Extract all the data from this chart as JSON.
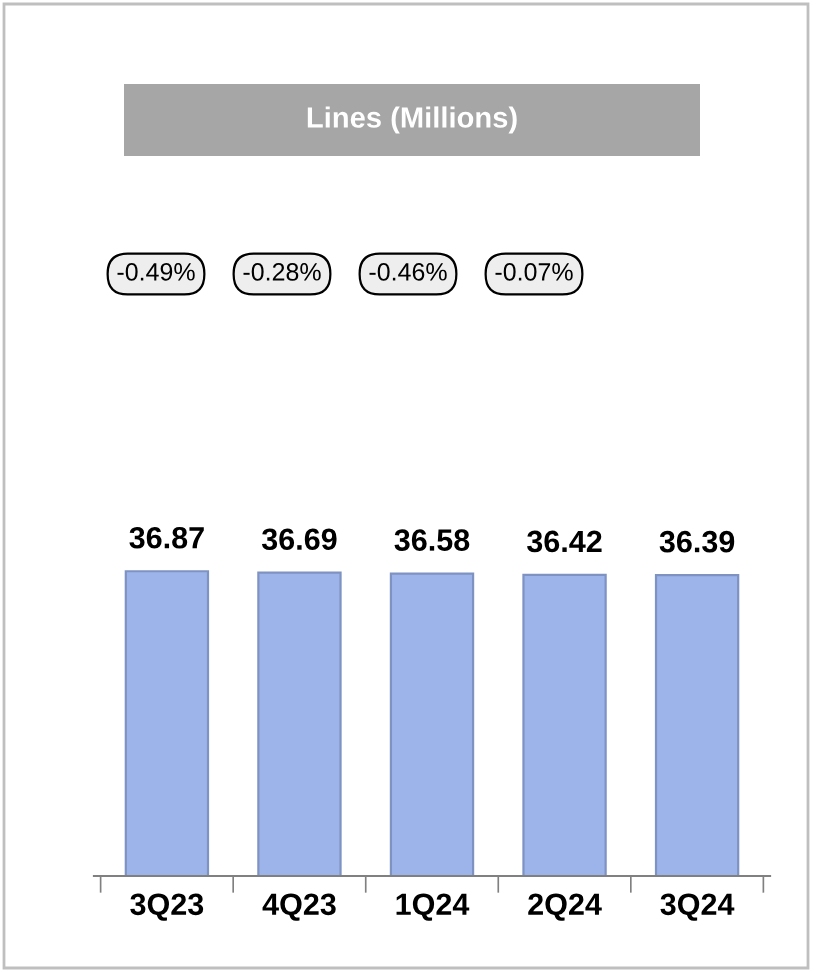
{
  "chart_data": {
    "type": "bar",
    "title": "Lines (Millions)",
    "categories": [
      "3Q23",
      "4Q23",
      "1Q24",
      "2Q24",
      "3Q24"
    ],
    "values": [
      36.87,
      36.69,
      36.58,
      36.42,
      36.39
    ],
    "color": "#9db4ea",
    "tick_labels": "x",
    "data_labels": true,
    "grid": false,
    "legend": false,
    "annotations": [
      "-0.49%",
      "-0.28%",
      "-0.46%",
      "-0.07%"
    ]
  }
}
